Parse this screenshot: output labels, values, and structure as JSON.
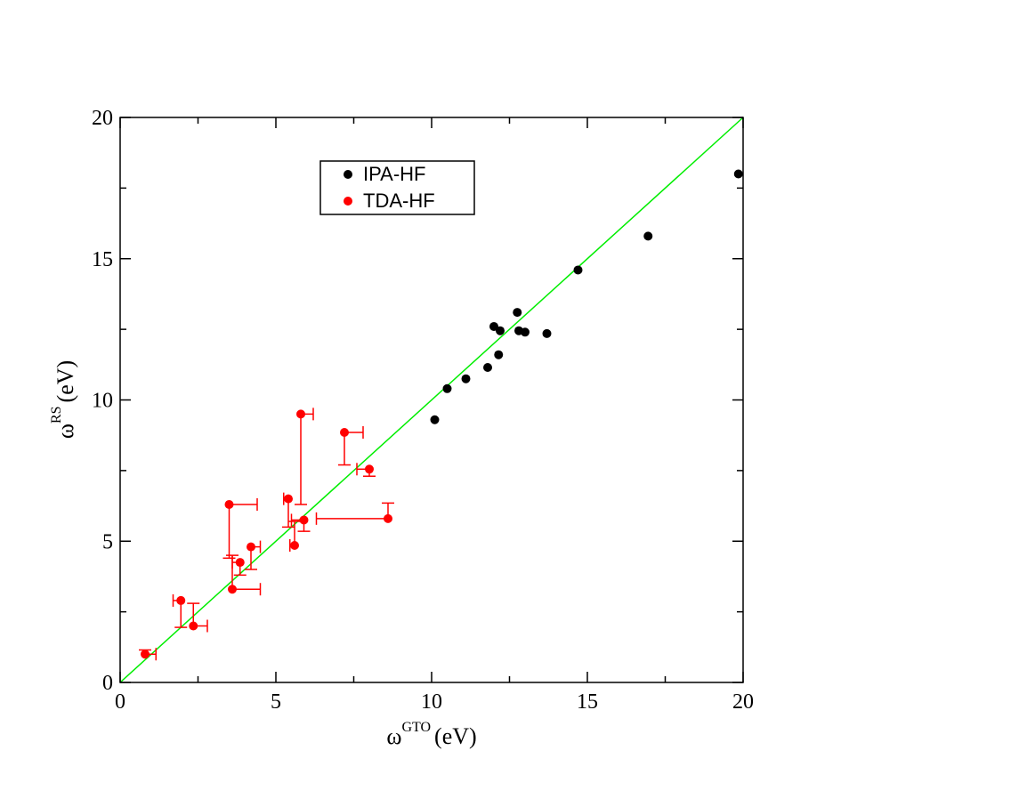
{
  "chart_data": {
    "type": "scatter",
    "xlabel": {
      "base": "ω",
      "sup": "GTO",
      "unit": "(eV)"
    },
    "ylabel": {
      "base": "ω",
      "sup": "RS",
      "unit": "(eV)"
    },
    "xlim": [
      0,
      20
    ],
    "ylim": [
      0,
      20
    ],
    "xticks": [
      0,
      5,
      10,
      15,
      20
    ],
    "yticks": [
      0,
      5,
      10,
      15,
      20
    ],
    "grid": false,
    "legend_position": "top-center-left",
    "reference_line": {
      "from": [
        0,
        0
      ],
      "to": [
        20,
        20
      ],
      "color": "#00ee00"
    },
    "series": [
      {
        "name": "IPA-HF",
        "color": "#000000",
        "points": [
          {
            "x": 10.1,
            "y": 9.3
          },
          {
            "x": 10.5,
            "y": 10.4
          },
          {
            "x": 11.1,
            "y": 10.75
          },
          {
            "x": 11.8,
            "y": 11.15
          },
          {
            "x": 12.0,
            "y": 12.6
          },
          {
            "x": 12.15,
            "y": 11.6
          },
          {
            "x": 12.2,
            "y": 12.45
          },
          {
            "x": 12.75,
            "y": 13.1
          },
          {
            "x": 12.8,
            "y": 12.45
          },
          {
            "x": 13.0,
            "y": 12.4
          },
          {
            "x": 13.7,
            "y": 12.35
          },
          {
            "x": 14.7,
            "y": 14.6
          },
          {
            "x": 16.95,
            "y": 15.8
          },
          {
            "x": 19.85,
            "y": 18.0
          }
        ]
      },
      {
        "name": "TDA-HF",
        "color": "#ff0000",
        "points": [
          {
            "x": 0.8,
            "y": 1.0,
            "xerr_to": 1.15,
            "yerr_to": 1.15
          },
          {
            "x": 1.95,
            "y": 2.9,
            "xerr_to": 1.7,
            "yerr_to": 1.95
          },
          {
            "x": 2.35,
            "y": 2.0,
            "xerr_to": 2.8,
            "yerr_to": 2.8
          },
          {
            "x": 3.5,
            "y": 6.3,
            "xerr_to": 4.4,
            "yerr_to": 4.4
          },
          {
            "x": 3.6,
            "y": 3.3,
            "xerr_to": 4.5,
            "yerr_to": 4.5
          },
          {
            "x": 3.85,
            "y": 4.25,
            "xerr_to": 3.6,
            "yerr_to": 3.8
          },
          {
            "x": 4.2,
            "y": 4.8,
            "xerr_to": 4.5,
            "yerr_to": 4.0
          },
          {
            "x": 5.4,
            "y": 6.5,
            "xerr_to": 5.25,
            "yerr_to": 5.5
          },
          {
            "x": 5.6,
            "y": 4.85,
            "xerr_to": 5.45,
            "yerr_to": 5.7
          },
          {
            "x": 5.8,
            "y": 9.5,
            "xerr_to": 6.2,
            "yerr_to": 6.3
          },
          {
            "x": 5.9,
            "y": 5.75,
            "xerr_to": 5.5,
            "yerr_to": 5.35
          },
          {
            "x": 7.2,
            "y": 8.85,
            "xerr_to": 7.8,
            "yerr_to": 7.7
          },
          {
            "x": 8.0,
            "y": 7.55,
            "xerr_to": 7.6,
            "yerr_to": 7.3
          },
          {
            "x": 8.6,
            "y": 5.8,
            "xerr_to": 6.3,
            "yerr_to": 6.35
          }
        ]
      }
    ]
  }
}
